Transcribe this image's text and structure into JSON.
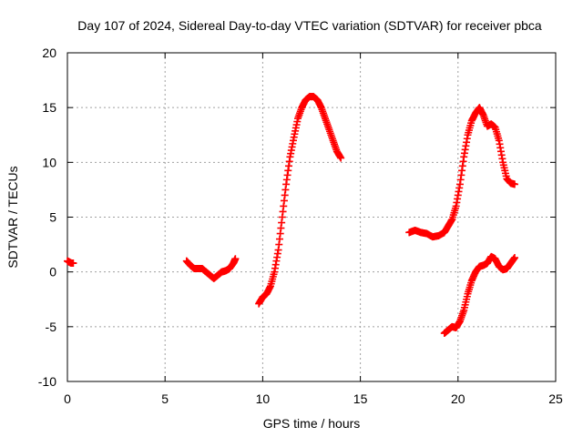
{
  "chart_data": {
    "type": "scatter",
    "title": "Day 107 of 2024, Sidereal Day-to-day VTEC variation (SDTVAR) for receiver pbca",
    "xlabel": "GPS time / hours",
    "ylabel": "SDTVAR / TECUs",
    "xlim": [
      0,
      25
    ],
    "ylim": [
      -10,
      20
    ],
    "xticks": [
      0,
      5,
      10,
      15,
      20,
      25
    ],
    "yticks": [
      -10,
      -5,
      0,
      5,
      10,
      15,
      20
    ],
    "grid": true,
    "marker": "+",
    "series": [
      {
        "name": "segment-1",
        "x": [
          0.0,
          0.1,
          0.2,
          0.3
        ],
        "y": [
          1.0,
          0.9,
          0.8,
          0.8
        ]
      },
      {
        "name": "segment-2",
        "x": [
          6.1,
          6.3,
          6.5,
          6.7,
          6.9,
          7.1,
          7.3,
          7.5,
          7.7,
          7.9,
          8.1,
          8.3,
          8.5,
          8.6
        ],
        "y": [
          1.0,
          0.6,
          0.3,
          0.3,
          0.3,
          0.0,
          -0.3,
          -0.6,
          -0.3,
          0.0,
          0.1,
          0.3,
          0.8,
          1.2
        ]
      },
      {
        "name": "segment-3",
        "x": [
          9.8,
          10.0,
          10.2,
          10.4,
          10.6,
          10.8,
          11.0,
          11.2,
          11.4,
          11.6,
          11.8,
          12.0,
          12.2,
          12.4,
          12.6,
          12.8,
          13.0,
          13.2,
          13.4,
          13.6,
          13.8,
          14.0
        ],
        "y": [
          -2.9,
          -2.3,
          -2.0,
          -1.3,
          0.0,
          2.0,
          5.0,
          8.0,
          10.5,
          12.3,
          14.0,
          15.0,
          15.7,
          16.0,
          16.0,
          15.7,
          15.0,
          14.0,
          13.0,
          12.0,
          11.0,
          10.4
        ]
      },
      {
        "name": "segment-4",
        "x": [
          17.5,
          17.8,
          18.1,
          18.4,
          18.7,
          19.0,
          19.3,
          19.5,
          19.7,
          19.9,
          20.1,
          20.3,
          20.5,
          20.7,
          20.9,
          21.1,
          21.3,
          21.5,
          21.7,
          21.9,
          22.1,
          22.3,
          22.5,
          22.7,
          22.9
        ],
        "y": [
          3.6,
          3.8,
          3.6,
          3.5,
          3.2,
          3.3,
          3.6,
          4.2,
          4.8,
          6.0,
          8.0,
          10.5,
          12.5,
          13.8,
          14.5,
          15.0,
          14.3,
          13.3,
          13.5,
          13.2,
          12.0,
          10.0,
          8.5,
          8.1,
          8.0
        ]
      },
      {
        "name": "segment-5",
        "x": [
          19.3,
          19.5,
          19.7,
          19.9,
          20.1,
          20.3,
          20.5,
          20.7,
          20.9,
          21.1,
          21.3,
          21.5,
          21.7,
          21.9,
          22.1,
          22.3,
          22.5,
          22.7,
          22.9
        ],
        "y": [
          -5.6,
          -5.3,
          -5.0,
          -5.1,
          -4.5,
          -3.5,
          -2.0,
          -0.8,
          0.0,
          0.5,
          0.6,
          0.8,
          1.4,
          1.2,
          0.5,
          0.2,
          0.3,
          0.8,
          1.3
        ]
      }
    ]
  }
}
